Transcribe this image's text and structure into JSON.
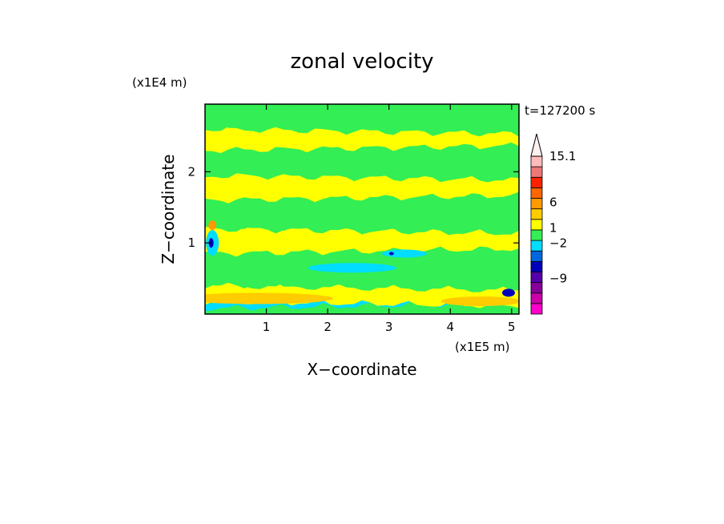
{
  "chart_data": {
    "type": "heatmap",
    "title": "zonal velocity",
    "xlabel": "X−coordinate",
    "ylabel": "Z−coordinate",
    "x_unit": "(x1E5 m)",
    "y_unit": "(x1E4 m)",
    "time_label": "t=127200 s",
    "xlim": [
      0,
      5.12
    ],
    "ylim": [
      0,
      2.95
    ],
    "x_ticks": [
      "1",
      "2",
      "3",
      "4",
      "5"
    ],
    "y_ticks": [
      "1",
      "2"
    ],
    "x_tick_values": [
      1,
      2,
      3,
      4,
      5
    ],
    "y_tick_values": [
      1,
      2
    ],
    "colorbar": {
      "labels": [
        "15.1",
        "6",
        "1",
        "−2",
        "−9"
      ],
      "label_levels": [
        15.1,
        6,
        1,
        -2,
        -9
      ],
      "vmin": -16,
      "vmax": 15.1,
      "colors": [
        "#ff00cc",
        "#cc00aa",
        "#880099",
        "#5500aa",
        "#0000bb",
        "#0066dd",
        "#00ddff",
        "#33ee55",
        "#ffff00",
        "#ffcc00",
        "#ff9900",
        "#ff6600",
        "#ff2200",
        "#ee7777",
        "#ffbbbb"
      ]
    },
    "bands": [
      {
        "y": [
          0.0,
          0.08
        ],
        "color": "#33ee55"
      },
      {
        "y": [
          0.08,
          0.18
        ],
        "color": "#00ddff"
      },
      {
        "y": [
          0.18,
          0.4
        ],
        "color": "#ffff00"
      },
      {
        "y": [
          0.4,
          0.6
        ],
        "color": "#33ee55"
      },
      {
        "y": [
          0.6,
          0.85
        ],
        "color": "#33ee55"
      },
      {
        "y": [
          0.85,
          1.2
        ],
        "color": "#ffff00"
      },
      {
        "y": [
          1.2,
          1.6
        ],
        "color": "#33ee55"
      },
      {
        "y": [
          1.6,
          1.95
        ],
        "color": "#ffff00"
      },
      {
        "y": [
          1.95,
          2.3
        ],
        "color": "#33ee55"
      },
      {
        "y": [
          2.3,
          2.6
        ],
        "color": "#ffff00"
      },
      {
        "y": [
          2.6,
          2.95
        ],
        "color": "#33ee55"
      }
    ]
  }
}
